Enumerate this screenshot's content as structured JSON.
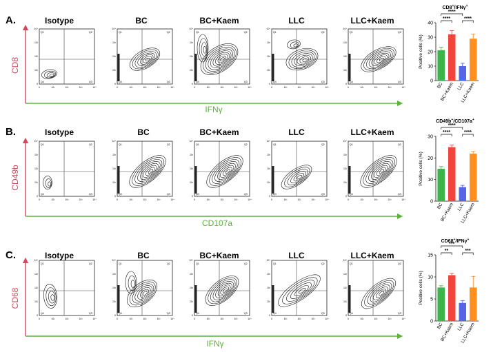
{
  "figure": {
    "sample_titles": [
      "Isotype",
      "BC",
      "BC+Kaem",
      "LLC",
      "LLC+Kaem"
    ],
    "quadrant_labels": [
      "Q1",
      "Q2",
      "Q3",
      "Q4"
    ],
    "tick_labels": [
      "0",
      "10¹",
      "10²",
      "10³",
      "10⁴"
    ],
    "colors": {
      "BC": "#3cb54a",
      "BC+Kaem": "#f0443c",
      "LLC": "#5566e6",
      "LLC+Kaem": "#ff8f1f",
      "y_axis": "#d2485e",
      "x_axis": "#5cb33a"
    }
  },
  "panels": [
    {
      "letter": "A.",
      "y_marker": "CD8",
      "x_marker": "IFNγ",
      "chart_title": "CD8",
      "chart_title_sup1": "+",
      "chart_title_mid": "/IFNγ",
      "chart_title_sup2": "+"
    },
    {
      "letter": "B.",
      "y_marker": "CD49b",
      "x_marker": "CD107a",
      "chart_title": "CD49b",
      "chart_title_sup1": "+",
      "chart_title_mid": "/CD107a",
      "chart_title_sup2": "+"
    },
    {
      "letter": "C.",
      "y_marker": "CD68",
      "x_marker": "IFNγ",
      "chart_title": "CD68",
      "chart_title_sup1": "+",
      "chart_title_mid": "/IFNγ",
      "chart_title_sup2": "+"
    }
  ],
  "chart_data": [
    {
      "type": "bar",
      "title": "CD8+/IFNγ+",
      "ylabel": "Positive cells (%)",
      "categories": [
        "BC",
        "BC+Kaem",
        "LLC",
        "LLC+Kaem"
      ],
      "values": [
        21,
        32,
        10,
        29
      ],
      "errors": [
        2,
        2.5,
        2,
        3
      ],
      "ylim": [
        0,
        40
      ],
      "yticks": [
        "0",
        "10",
        "20",
        "30",
        "40"
      ],
      "significance": [
        {
          "from": 0,
          "to": 1,
          "label": "****",
          "level": 1
        },
        {
          "from": 2,
          "to": 3,
          "label": "****",
          "level": 1
        },
        {
          "from": 0,
          "to": 2,
          "label": "****",
          "level": 2
        }
      ]
    },
    {
      "type": "bar",
      "title": "CD49b+/CD107a+",
      "ylabel": "Positive cells (%)",
      "categories": [
        "BC",
        "BC+Kaem",
        "LLC",
        "LLC+Kaem"
      ],
      "values": [
        15,
        25,
        6.5,
        22
      ],
      "errors": [
        1,
        1,
        0.8,
        1
      ],
      "ylim": [
        0,
        30
      ],
      "yticks": [
        "0",
        "10",
        "20",
        "30"
      ],
      "significance": [
        {
          "from": 0,
          "to": 1,
          "label": "****",
          "level": 1
        },
        {
          "from": 2,
          "to": 3,
          "label": "****",
          "level": 1
        },
        {
          "from": 0,
          "to": 2,
          "label": "****",
          "level": 2
        }
      ]
    },
    {
      "type": "bar",
      "title": "CD68+/IFNγ+",
      "ylabel": "Positive cells (%)",
      "categories": [
        "BC",
        "BC+Kaem",
        "LLC",
        "LLC+Kaem"
      ],
      "values": [
        7.6,
        10.4,
        4.1,
        7.6
      ],
      "errors": [
        0.4,
        0.4,
        0.5,
        2.5
      ],
      "ylim": [
        0,
        15
      ],
      "yticks": [
        "0",
        "5",
        "10",
        "15"
      ],
      "significance": [
        {
          "from": 0,
          "to": 1,
          "label": "**",
          "level": 1
        },
        {
          "from": 2,
          "to": 3,
          "label": "***",
          "level": 1
        },
        {
          "from": 0,
          "to": 2,
          "label": "***",
          "level": 2
        }
      ]
    }
  ]
}
